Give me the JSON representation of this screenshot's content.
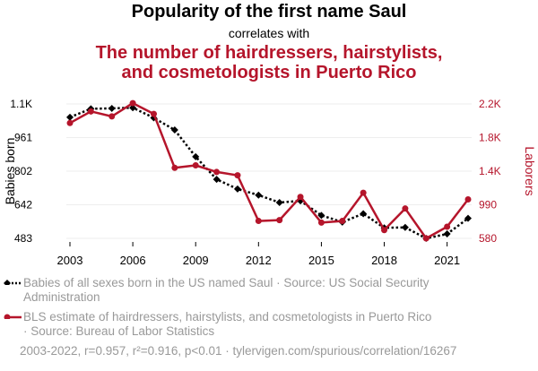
{
  "header": {
    "title": "Popularity of the first name Saul",
    "subtitle": "correlates with",
    "title2_line1": "The number of hairdressers, hairstylists,",
    "title2_line2": "and cosmetologists in Puerto Rico"
  },
  "chart_data": {
    "type": "line",
    "x": [
      2003,
      2004,
      2005,
      2006,
      2007,
      2008,
      2009,
      2010,
      2011,
      2012,
      2013,
      2014,
      2015,
      2016,
      2017,
      2018,
      2019,
      2020,
      2021,
      2022
    ],
    "x_ticks": [
      "2003",
      "2006",
      "2009",
      "2012",
      "2015",
      "2018",
      "2021"
    ],
    "series": [
      {
        "name": "Babies of all sexes born in the US named Saul",
        "axis": "left",
        "color": "#000000",
        "style": "dotted",
        "marker": "diamond",
        "values": [
          1057,
          1097,
          1099,
          1102,
          1054,
          997,
          870,
          763,
          717,
          688,
          653,
          661,
          592,
          560,
          600,
          533,
          535,
          483,
          504,
          578
        ]
      },
      {
        "name": "BLS estimate of hairdressers, hairstylists, and cosmetologists in Puerto Rico",
        "axis": "right",
        "color": "#b5152b",
        "style": "solid",
        "marker": "circle",
        "values": [
          1970,
          2110,
          2050,
          2210,
          2080,
          1430,
          1460,
          1380,
          1340,
          790,
          800,
          1080,
          770,
          790,
          1130,
          680,
          940,
          580,
          720,
          1050
        ]
      }
    ],
    "ylabel_left": "Babies born",
    "ylabel_right": "Laborers",
    "yticks_left": [
      "483",
      "642",
      "802",
      "961",
      "1.1K"
    ],
    "yticks_right": [
      "580",
      "990",
      "1.4K",
      "1.8K",
      "2.2K"
    ],
    "ylim_left": [
      483,
      1120
    ],
    "ylim_right": [
      580,
      2200
    ],
    "grid": true,
    "legend": [
      {
        "label": "Babies of all sexes born in the US named Saul · Source: US Social Security",
        "label2": "Administration"
      },
      {
        "label": "BLS estimate of hairdressers, hairstylists, and cosmetologists in Puerto Rico",
        "label2": "· Source: Bureau of Labor Statistics"
      }
    ],
    "footer": "2003-2022, r=0.957, r²=0.916, p<0.01 · tylervigen.com/spurious/correlation/16267"
  },
  "colors": {
    "left_series": "#000000",
    "right_series": "#b5152b",
    "muted": "#999999"
  }
}
